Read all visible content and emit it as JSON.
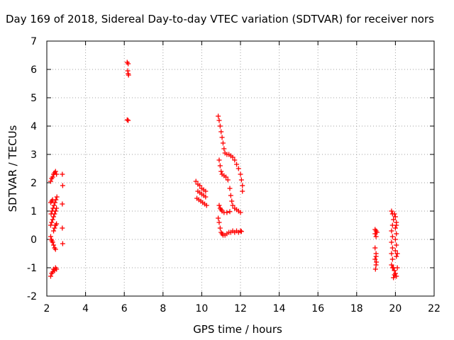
{
  "chart_data": {
    "type": "scatter",
    "title": "Day 169 of 2018, Sidereal Day-to-day VTEC variation (SDTVAR) for receiver nors",
    "xlabel": "GPS time / hours",
    "ylabel": "SDTVAR / TECUs",
    "xlim": [
      2,
      22
    ],
    "ylim": [
      -2,
      7
    ],
    "xticks": [
      2,
      4,
      6,
      8,
      10,
      12,
      14,
      16,
      18,
      20,
      22
    ],
    "yticks": [
      -2,
      -1,
      0,
      1,
      2,
      3,
      4,
      5,
      6,
      7
    ],
    "grid": true,
    "marker": "+",
    "color": "#ff0000",
    "series": [
      {
        "name": "SDTVAR",
        "points": [
          [
            2.2,
            -1.3
          ],
          [
            2.25,
            -1.2
          ],
          [
            2.3,
            -1.15
          ],
          [
            2.35,
            -1.05
          ],
          [
            2.4,
            -1.1
          ],
          [
            2.45,
            -1.0
          ],
          [
            2.5,
            -1.05
          ],
          [
            2.2,
            0.1
          ],
          [
            2.23,
            0.0
          ],
          [
            2.26,
            -0.05
          ],
          [
            2.3,
            -0.1
          ],
          [
            2.35,
            -0.2
          ],
          [
            2.4,
            -0.3
          ],
          [
            2.45,
            -0.35
          ],
          [
            2.2,
            0.5
          ],
          [
            2.25,
            0.6
          ],
          [
            2.3,
            0.7
          ],
          [
            2.35,
            0.8
          ],
          [
            2.4,
            0.9
          ],
          [
            2.45,
            1.0
          ],
          [
            2.5,
            1.1
          ],
          [
            2.22,
            0.9
          ],
          [
            2.27,
            1.0
          ],
          [
            2.32,
            1.1
          ],
          [
            2.37,
            1.2
          ],
          [
            2.42,
            1.3
          ],
          [
            2.47,
            1.4
          ],
          [
            2.52,
            1.5
          ],
          [
            2.2,
            1.3
          ],
          [
            2.25,
            1.35
          ],
          [
            2.3,
            1.4
          ],
          [
            2.2,
            2.05
          ],
          [
            2.25,
            2.15
          ],
          [
            2.3,
            2.2
          ],
          [
            2.35,
            2.3
          ],
          [
            2.4,
            2.35
          ],
          [
            2.45,
            2.4
          ],
          [
            2.5,
            2.3
          ],
          [
            2.35,
            0.3
          ],
          [
            2.4,
            0.4
          ],
          [
            2.45,
            0.5
          ],
          [
            2.5,
            0.55
          ],
          [
            2.8,
            2.3
          ],
          [
            2.82,
            1.9
          ],
          [
            2.8,
            1.25
          ],
          [
            2.8,
            0.4
          ],
          [
            2.82,
            -0.15
          ],
          [
            6.15,
            6.25
          ],
          [
            6.2,
            6.2
          ],
          [
            6.18,
            5.95
          ],
          [
            6.2,
            5.85
          ],
          [
            6.22,
            5.8
          ],
          [
            6.2,
            4.2
          ],
          [
            6.15,
            4.22
          ],
          [
            9.7,
            2.05
          ],
          [
            9.8,
            1.95
          ],
          [
            9.9,
            1.9
          ],
          [
            10.0,
            1.8
          ],
          [
            10.1,
            1.75
          ],
          [
            10.2,
            1.7
          ],
          [
            9.75,
            1.45
          ],
          [
            9.85,
            1.4
          ],
          [
            9.95,
            1.35
          ],
          [
            10.05,
            1.3
          ],
          [
            10.15,
            1.25
          ],
          [
            10.25,
            1.2
          ],
          [
            9.8,
            1.7
          ],
          [
            9.9,
            1.65
          ],
          [
            10.0,
            1.6
          ],
          [
            10.1,
            1.55
          ],
          [
            10.2,
            1.5
          ],
          [
            10.85,
            4.35
          ],
          [
            10.9,
            4.2
          ],
          [
            10.95,
            4.0
          ],
          [
            11.0,
            3.8
          ],
          [
            11.05,
            3.6
          ],
          [
            11.1,
            3.4
          ],
          [
            11.15,
            3.2
          ],
          [
            11.2,
            3.05
          ],
          [
            11.3,
            3.0
          ],
          [
            11.4,
            3.0
          ],
          [
            11.5,
            2.95
          ],
          [
            11.6,
            2.9
          ],
          [
            11.7,
            2.8
          ],
          [
            11.8,
            2.65
          ],
          [
            11.9,
            2.5
          ],
          [
            12.0,
            2.3
          ],
          [
            12.05,
            2.1
          ],
          [
            12.1,
            1.9
          ],
          [
            12.1,
            1.7
          ],
          [
            10.9,
            2.8
          ],
          [
            10.95,
            2.6
          ],
          [
            11.0,
            2.4
          ],
          [
            11.05,
            2.3
          ],
          [
            11.15,
            2.25
          ],
          [
            11.25,
            2.2
          ],
          [
            11.35,
            2.1
          ],
          [
            11.45,
            1.8
          ],
          [
            11.5,
            1.55
          ],
          [
            11.55,
            1.35
          ],
          [
            11.6,
            1.2
          ],
          [
            11.7,
            1.1
          ],
          [
            11.8,
            1.05
          ],
          [
            11.9,
            1.0
          ],
          [
            12.0,
            0.95
          ],
          [
            10.9,
            1.2
          ],
          [
            10.95,
            1.1
          ],
          [
            11.0,
            1.05
          ],
          [
            11.05,
            1.0
          ],
          [
            11.15,
            0.95
          ],
          [
            11.3,
            0.95
          ],
          [
            11.45,
            0.98
          ],
          [
            10.85,
            0.75
          ],
          [
            10.9,
            0.6
          ],
          [
            10.95,
            0.4
          ],
          [
            11.0,
            0.25
          ],
          [
            11.05,
            0.2
          ],
          [
            11.1,
            0.15
          ],
          [
            11.2,
            0.15
          ],
          [
            11.3,
            0.2
          ],
          [
            11.4,
            0.25
          ],
          [
            11.5,
            0.25
          ],
          [
            11.6,
            0.3
          ],
          [
            11.7,
            0.25
          ],
          [
            11.8,
            0.3
          ],
          [
            11.9,
            0.25
          ],
          [
            12.0,
            0.3
          ],
          [
            12.05,
            0.28
          ],
          [
            18.95,
            0.35
          ],
          [
            19.0,
            0.3
          ],
          [
            19.05,
            0.25
          ],
          [
            19.0,
            0.1
          ],
          [
            18.95,
            0.2
          ],
          [
            18.95,
            -0.3
          ],
          [
            19.0,
            -0.5
          ],
          [
            18.95,
            -0.7
          ],
          [
            19.0,
            -0.9
          ],
          [
            18.97,
            -1.05
          ],
          [
            19.02,
            -0.8
          ],
          [
            19.0,
            -0.6
          ],
          [
            19.8,
            1.0
          ],
          [
            19.85,
            0.9
          ],
          [
            19.9,
            0.7
          ],
          [
            19.85,
            0.5
          ],
          [
            19.8,
            0.3
          ],
          [
            19.85,
            0.1
          ],
          [
            19.8,
            -0.1
          ],
          [
            19.85,
            -0.3
          ],
          [
            19.8,
            -0.5
          ],
          [
            19.85,
            -0.7
          ],
          [
            19.8,
            -0.9
          ],
          [
            19.85,
            -1.0
          ],
          [
            19.95,
            0.9
          ],
          [
            20.0,
            0.8
          ],
          [
            20.05,
            0.6
          ],
          [
            20.0,
            0.4
          ],
          [
            20.05,
            0.2
          ],
          [
            20.0,
            0.0
          ],
          [
            20.05,
            -0.2
          ],
          [
            20.0,
            -0.4
          ],
          [
            20.05,
            -0.6
          ],
          [
            19.9,
            -1.0
          ],
          [
            19.95,
            -1.1
          ],
          [
            20.0,
            -1.2
          ],
          [
            20.05,
            -1.3
          ],
          [
            19.9,
            -1.35
          ],
          [
            19.95,
            -1.25
          ],
          [
            20.1,
            -1.0
          ],
          [
            20.1,
            -0.5
          ],
          [
            20.05,
            0.5
          ]
        ]
      }
    ]
  }
}
